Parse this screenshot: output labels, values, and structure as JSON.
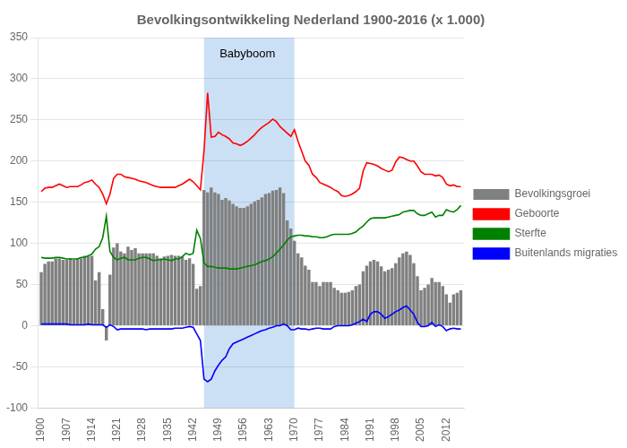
{
  "chart_data": {
    "type": "bar",
    "title": "Bevolkingsontwikkeling Nederland 1900-2016 (x 1.000)",
    "x": [
      1900,
      1901,
      1902,
      1903,
      1904,
      1905,
      1906,
      1907,
      1908,
      1909,
      1910,
      1911,
      1912,
      1913,
      1914,
      1915,
      1916,
      1917,
      1918,
      1919,
      1920,
      1921,
      1922,
      1923,
      1924,
      1925,
      1926,
      1927,
      1928,
      1929,
      1930,
      1931,
      1932,
      1933,
      1934,
      1935,
      1936,
      1937,
      1938,
      1939,
      1940,
      1941,
      1942,
      1943,
      1944,
      1945,
      1946,
      1947,
      1948,
      1949,
      1950,
      1951,
      1952,
      1953,
      1954,
      1955,
      1956,
      1957,
      1958,
      1959,
      1960,
      1961,
      1962,
      1963,
      1964,
      1965,
      1966,
      1967,
      1968,
      1969,
      1970,
      1971,
      1972,
      1973,
      1974,
      1975,
      1976,
      1977,
      1978,
      1979,
      1980,
      1981,
      1982,
      1983,
      1984,
      1985,
      1986,
      1987,
      1988,
      1989,
      1990,
      1991,
      1992,
      1993,
      1994,
      1995,
      1996,
      1997,
      1998,
      1999,
      2000,
      2001,
      2002,
      2003,
      2004,
      2005,
      2006,
      2007,
      2008,
      2009,
      2010,
      2011,
      2012,
      2013,
      2014,
      2015,
      2016
    ],
    "series": [
      {
        "name": "Bevolkingsgroei",
        "type": "bar",
        "color": "#808080",
        "values": [
          65,
          75,
          78,
          78,
          82,
          82,
          80,
          80,
          82,
          80,
          82,
          82,
          85,
          85,
          85,
          55,
          65,
          20,
          -18,
          62,
          95,
          100,
          90,
          88,
          96,
          92,
          94,
          88,
          88,
          88,
          88,
          88,
          85,
          82,
          84,
          85,
          86,
          85,
          85,
          84,
          80,
          82,
          75,
          45,
          48,
          165,
          162,
          168,
          162,
          160,
          153,
          155,
          152,
          148,
          145,
          143,
          143,
          145,
          148,
          151,
          153,
          156,
          160,
          161,
          164,
          165,
          168,
          161,
          128,
          118,
          103,
          88,
          83,
          73,
          68,
          53,
          53,
          48,
          53,
          53,
          53,
          46,
          43,
          40,
          40,
          41,
          43,
          48,
          50,
          66,
          73,
          78,
          80,
          78,
          72,
          66,
          68,
          70,
          76,
          83,
          88,
          90,
          86,
          76,
          60,
          43,
          46,
          50,
          58,
          53,
          53,
          48,
          38,
          28,
          38,
          40,
          43
        ]
      },
      {
        "name": "Geboorte",
        "type": "line",
        "color": "#FF0000",
        "values": [
          163,
          167,
          168,
          168,
          170,
          172,
          170,
          168,
          169,
          169,
          169,
          171,
          174,
          175,
          177,
          172,
          168,
          160,
          148,
          160,
          179,
          184,
          184,
          181,
          180,
          179,
          178,
          176,
          175,
          174,
          172,
          170,
          169,
          168,
          168,
          168,
          168,
          168,
          170,
          172,
          175,
          178,
          175,
          170,
          165,
          212,
          283,
          229,
          230,
          235,
          232,
          230,
          227,
          222,
          221,
          219,
          221,
          224,
          228,
          232,
          237,
          241,
          244,
          247,
          251,
          248,
          242,
          238,
          234,
          230,
          238,
          224,
          212,
          200,
          195,
          184,
          180,
          174,
          172,
          170,
          168,
          165,
          163,
          158,
          157,
          158,
          160,
          163,
          167,
          188,
          198,
          197,
          196,
          194,
          191,
          189,
          187,
          189,
          199,
          205,
          204,
          202,
          200,
          200,
          194,
          187,
          184,
          184,
          184,
          182,
          183,
          180,
          172,
          170,
          171,
          169,
          169
        ]
      },
      {
        "name": "Sterfte",
        "type": "line",
        "color": "#008000",
        "values": [
          83,
          82,
          82,
          82,
          83,
          83,
          82,
          81,
          81,
          81,
          81,
          83,
          83,
          85,
          87,
          93,
          96,
          107,
          133,
          90,
          83,
          80,
          82,
          83,
          80,
          80,
          80,
          82,
          83,
          83,
          81,
          79,
          80,
          80,
          81,
          80,
          79,
          81,
          81,
          84,
          88,
          86,
          88,
          116,
          106,
          76,
          72,
          72,
          71,
          70,
          70,
          70,
          69,
          69,
          69,
          70,
          71,
          72,
          73,
          74,
          76,
          78,
          79,
          81,
          84,
          88,
          93,
          98,
          104,
          108,
          109,
          110,
          110,
          109,
          109,
          108,
          108,
          107,
          107,
          108,
          110,
          111,
          111,
          111,
          111,
          111,
          112,
          114,
          118,
          121,
          126,
          130,
          131,
          131,
          131,
          131,
          132,
          133,
          134,
          135,
          138,
          139,
          140,
          140,
          136,
          134,
          134,
          136,
          138,
          132,
          134,
          134,
          141,
          139,
          138,
          141,
          146
        ]
      },
      {
        "name": "Buitenlands migratiesaldo",
        "type": "line",
        "color": "#0000FF",
        "values": [
          2,
          2,
          2,
          2,
          2,
          2,
          2,
          2,
          1,
          1,
          1,
          1,
          1,
          2,
          1,
          1,
          1,
          1,
          -2,
          1,
          -1,
          -5,
          -4,
          -4,
          -4,
          -4,
          -4,
          -4,
          -4,
          -5,
          -4,
          -4,
          -4,
          -4,
          -4,
          -4,
          -4,
          -3,
          -3,
          -3,
          -2,
          -1,
          -2,
          -10,
          -18,
          -65,
          -68,
          -65,
          -55,
          -48,
          -42,
          -38,
          -28,
          -22,
          -20,
          -18,
          -16,
          -14,
          -12,
          -10,
          -8,
          -6,
          -5,
          -3,
          -2,
          0,
          0,
          2,
          0,
          -5,
          -5,
          -3,
          -4,
          -4,
          -5,
          -4,
          -3,
          -3,
          -4,
          -4,
          -4,
          -1,
          0,
          0,
          0,
          0,
          1,
          3,
          5,
          8,
          5,
          14,
          17,
          17,
          14,
          9,
          11,
          14,
          17,
          19,
          22,
          24,
          19,
          14,
          4,
          -1,
          -1,
          0,
          4,
          -1,
          1,
          -1,
          -6,
          -4,
          -3,
          -4,
          -4
        ]
      }
    ],
    "highlights": [
      {
        "start": 1945,
        "end": 1970,
        "color": "#cce0f5"
      }
    ],
    "annotations": [
      {
        "text": "Babyboom",
        "x": 1957,
        "y": 337
      }
    ],
    "xlim": [
      1899,
      2017
    ],
    "xticks": [
      1900,
      1907,
      1914,
      1921,
      1928,
      1935,
      1942,
      1949,
      1956,
      1963,
      1970,
      1977,
      1984,
      1991,
      1998,
      2005,
      2012
    ],
    "ylim": [
      -100,
      350
    ],
    "yticks": [
      -100,
      -50,
      0,
      50,
      100,
      150,
      200,
      250,
      300,
      350
    ],
    "grid": "y",
    "legend": "right"
  }
}
